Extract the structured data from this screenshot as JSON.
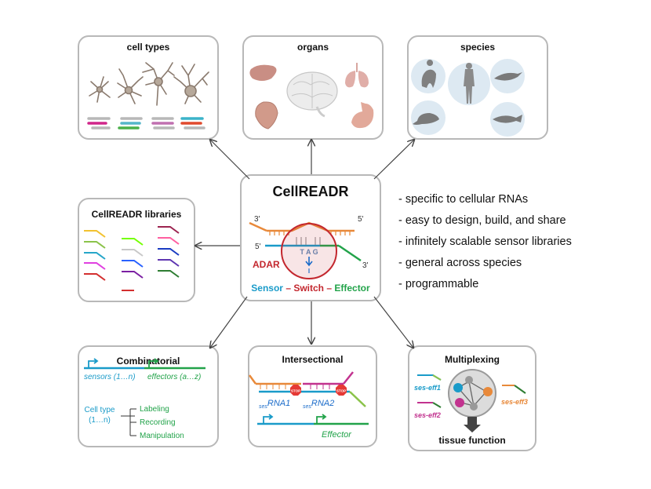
{
  "boxes": {
    "cell_types": {
      "title": "cell types"
    },
    "organs": {
      "title": "organs"
    },
    "species": {
      "title": "species"
    },
    "libraries": {
      "title": "CellREADR libraries"
    },
    "center": {
      "title": "CellREADR",
      "three_prime_top": "3'",
      "five_prime_top": "5'",
      "five_prime_left": "5'",
      "three_prime_right": "3'",
      "codon": "T A G",
      "edit_base": "I",
      "adar": "ADAR",
      "sensor": "Sensor",
      "dash1": " – ",
      "switch": "Switch",
      "dash2": " – ",
      "effector": "Effector"
    },
    "combinatorial": {
      "title": "Combinatorial",
      "sensors": "sensors (1…n)",
      "effectors": "effectors (a…z)",
      "cell_type": "Cell type",
      "cell_range": "(1…n)",
      "labeling": "Labeling",
      "recording": "Recording",
      "manipulation": "Manipulation"
    },
    "intersectional": {
      "title": "Intersectional",
      "ses_sub": "ses",
      "rna1": "RNA1",
      "rna2": "RNA2",
      "stop": "STOP",
      "effector": "Effector"
    },
    "multiplexing": {
      "title": "Multiplexing",
      "eff1": "ses-eff1",
      "eff2": "ses-eff2",
      "eff3": "ses-eff3",
      "tissue": "tissue function"
    }
  },
  "features": [
    "- specific to cellular RNAs",
    "- easy to design, build, and share",
    "- infinitely scalable sensor libraries",
    "- general across species",
    "- programmable"
  ],
  "colors": {
    "sensor": "#1a9bc9",
    "switch": "#c3272e",
    "effector": "#22a34a",
    "orange": "#e8893a",
    "magenta": "#c2338f",
    "green": "#4caf50",
    "border": "#b8b8b8"
  }
}
